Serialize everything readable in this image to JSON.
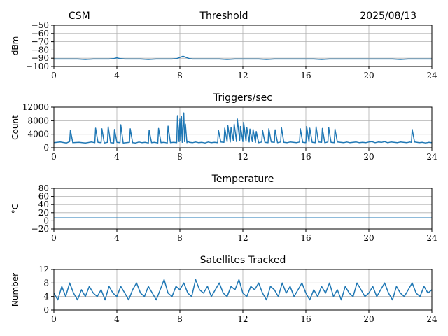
{
  "header": {
    "station": "CSM",
    "title": "Threshold",
    "date": "2025/08/13"
  },
  "chart_data": [
    {
      "type": "line",
      "title": "Threshold",
      "xlabel": "",
      "ylabel": "dBm",
      "xlim": [
        0,
        24
      ],
      "ylim": [
        -100,
        -50
      ],
      "xticks": [
        0,
        4,
        8,
        12,
        16,
        20,
        24
      ],
      "yticks": [
        -100,
        -90,
        -80,
        -70,
        -60,
        -50
      ],
      "ytick_labels": [
        "−100",
        "−90",
        "−80",
        "−70",
        "−60",
        "−50"
      ],
      "grid": true,
      "series": [
        {
          "color": "#1f77b4",
          "x": [
            0,
            0.5,
            1,
            1.5,
            2,
            2.5,
            3,
            3.5,
            3.8,
            4.0,
            4.2,
            4.5,
            5,
            5.5,
            6,
            6.5,
            7,
            7.5,
            7.8,
            8.0,
            8.2,
            8.4,
            8.6,
            8.8,
            9,
            9.5,
            10,
            10.5,
            11,
            11.5,
            12,
            12.5,
            13,
            13.5,
            14,
            14.5,
            15,
            15.5,
            16,
            16.5,
            17,
            17.5,
            18,
            18.5,
            19,
            19.5,
            20,
            20.5,
            21,
            21.5,
            22,
            22.5,
            23,
            23.5,
            24
          ],
          "y": [
            -91,
            -91,
            -91,
            -91,
            -91.5,
            -91,
            -91,
            -91,
            -90.5,
            -89.5,
            -90.5,
            -91,
            -91,
            -91,
            -91.5,
            -91,
            -91,
            -91,
            -90.5,
            -89,
            -87.5,
            -89,
            -90.5,
            -91,
            -91,
            -91,
            -91,
            -91,
            -91.5,
            -91,
            -91,
            -91,
            -91,
            -91.5,
            -91,
            -91,
            -91,
            -91,
            -91,
            -91,
            -91.5,
            -91,
            -91,
            -91,
            -91,
            -91,
            -91,
            -91,
            -91,
            -91,
            -91.5,
            -91,
            -91,
            -91,
            -91
          ]
        }
      ]
    },
    {
      "type": "line",
      "title": "Triggers/sec",
      "xlabel": "",
      "ylabel": "Count",
      "xlim": [
        0,
        24
      ],
      "ylim": [
        0,
        12000
      ],
      "xticks": [
        0,
        4,
        8,
        12,
        16,
        20,
        24
      ],
      "yticks": [
        0,
        4000,
        8000,
        12000
      ],
      "grid": true,
      "series": [
        {
          "color": "#1f77b4",
          "x": [
            0,
            0.4,
            0.8,
            1.0,
            1.05,
            1.2,
            1.6,
            2.0,
            2.4,
            2.6,
            2.65,
            2.8,
            3.0,
            3.05,
            3.2,
            3.4,
            3.45,
            3.6,
            3.8,
            3.85,
            4.0,
            4.2,
            4.25,
            4.4,
            4.6,
            4.8,
            4.85,
            5.0,
            5.2,
            5.4,
            5.6,
            5.8,
            6.0,
            6.05,
            6.2,
            6.4,
            6.6,
            6.65,
            6.8,
            7.0,
            7.2,
            7.25,
            7.4,
            7.6,
            7.8,
            7.85,
            7.95,
            8.0,
            8.05,
            8.1,
            8.15,
            8.25,
            8.3,
            8.35,
            8.45,
            8.5,
            8.6,
            8.8,
            9.0,
            9.2,
            9.4,
            9.6,
            9.8,
            10.0,
            10.2,
            10.4,
            10.45,
            10.6,
            10.8,
            10.85,
            11.0,
            11.05,
            11.2,
            11.25,
            11.4,
            11.45,
            11.6,
            11.65,
            11.8,
            11.85,
            12.0,
            12.05,
            12.2,
            12.25,
            12.4,
            12.45,
            12.6,
            12.65,
            12.8,
            12.85,
            13.0,
            13.2,
            13.25,
            13.4,
            13.6,
            13.65,
            13.8,
            14.0,
            14.05,
            14.2,
            14.4,
            14.45,
            14.6,
            14.8,
            15.0,
            15.2,
            15.4,
            15.6,
            15.65,
            15.8,
            16.0,
            16.05,
            16.2,
            16.25,
            16.4,
            16.6,
            16.65,
            16.8,
            17.0,
            17.05,
            17.2,
            17.4,
            17.45,
            17.6,
            17.8,
            17.85,
            18.0,
            18.2,
            18.4,
            18.6,
            18.8,
            19.0,
            19.2,
            19.4,
            19.6,
            19.8,
            20.0,
            20.2,
            20.4,
            20.6,
            20.8,
            21.0,
            21.2,
            21.4,
            21.6,
            21.8,
            22.0,
            22.2,
            22.4,
            22.6,
            22.7,
            22.75,
            22.9,
            23.2,
            23.4,
            23.6,
            23.8,
            24.0
          ],
          "y": [
            1500,
            1700,
            1400,
            1800,
            5200,
            1500,
            1600,
            1400,
            1700,
            1500,
            5800,
            1600,
            1500,
            5600,
            1400,
            1600,
            6200,
            1500,
            1400,
            5400,
            1600,
            1500,
            6800,
            1400,
            1500,
            1600,
            5600,
            1500,
            1400,
            1700,
            1500,
            1600,
            1400,
            5200,
            1500,
            1600,
            1400,
            5700,
            1500,
            1600,
            1400,
            6400,
            1500,
            1600,
            1500,
            9500,
            1800,
            8500,
            2000,
            9200,
            1600,
            10300,
            1800,
            7000,
            1500,
            2000,
            1600,
            1500,
            1700,
            1500,
            1600,
            1400,
            1700,
            1500,
            1600,
            1500,
            5200,
            1700,
            1600,
            5800,
            1800,
            6500,
            1700,
            6000,
            2000,
            7000,
            1800,
            8500,
            2200,
            6300,
            1800,
            7500,
            1900,
            6000,
            1700,
            5500,
            1800,
            5400,
            1600,
            4800,
            1500,
            1700,
            5200,
            1600,
            1500,
            5600,
            1700,
            1600,
            5300,
            1500,
            1700,
            6000,
            1600,
            1500,
            1700,
            1600,
            1500,
            1700,
            5600,
            1600,
            1500,
            6300,
            1700,
            5800,
            1600,
            1500,
            6200,
            1700,
            1600,
            5700,
            1500,
            1700,
            6000,
            1600,
            1500,
            5500,
            1700,
            1600,
            1500,
            1700,
            1500,
            1600,
            1700,
            1500,
            1600,
            1500,
            1700,
            1800,
            1500,
            1700,
            1600,
            1800,
            1500,
            1700,
            1600,
            1500,
            1700,
            1600,
            1500,
            1700,
            1600,
            5400,
            1700,
            1500,
            1600,
            1400,
            1600,
            1500
          ]
        }
      ]
    },
    {
      "type": "line",
      "title": "Temperature",
      "xlabel": "",
      "ylabel": "°C",
      "xlim": [
        0,
        24
      ],
      "ylim": [
        -20,
        80
      ],
      "xticks": [
        0,
        4,
        8,
        12,
        16,
        20,
        24
      ],
      "yticks": [
        -20,
        0,
        20,
        40,
        60,
        80
      ],
      "ytick_labels": [
        "−20",
        "0",
        "20",
        "40",
        "60",
        "80"
      ],
      "grid": true,
      "series": [
        {
          "color": "#1f77b4",
          "x": [
            0,
            24
          ],
          "y": [
            7,
            7
          ]
        }
      ]
    },
    {
      "type": "line",
      "title": "Satellites Tracked",
      "xlabel": "",
      "ylabel": "Number",
      "xlim": [
        0,
        24
      ],
      "ylim": [
        0,
        12
      ],
      "xticks": [
        0,
        4,
        8,
        12,
        16,
        20,
        24
      ],
      "yticks": [
        0,
        4,
        8,
        12
      ],
      "grid": true,
      "series": [
        {
          "color": "#1f77b4",
          "x": [
            0,
            0.25,
            0.5,
            0.75,
            1,
            1.25,
            1.5,
            1.75,
            2,
            2.25,
            2.5,
            2.75,
            3,
            3.25,
            3.5,
            3.75,
            4,
            4.25,
            4.5,
            4.75,
            5,
            5.25,
            5.5,
            5.75,
            6,
            6.25,
            6.5,
            6.75,
            7,
            7.25,
            7.5,
            7.75,
            8,
            8.25,
            8.5,
            8.75,
            9,
            9.25,
            9.5,
            9.75,
            10,
            10.25,
            10.5,
            10.75,
            11,
            11.25,
            11.5,
            11.75,
            12,
            12.25,
            12.5,
            12.75,
            13,
            13.25,
            13.5,
            13.75,
            14,
            14.25,
            14.5,
            14.75,
            15,
            15.25,
            15.5,
            15.75,
            16,
            16.25,
            16.5,
            16.75,
            17,
            17.25,
            17.5,
            17.75,
            18,
            18.25,
            18.5,
            18.75,
            19,
            19.25,
            19.5,
            19.75,
            20,
            20.25,
            20.5,
            20.75,
            21,
            21.25,
            21.5,
            21.75,
            22,
            22.25,
            22.5,
            22.75,
            23,
            23.25,
            23.5,
            23.75,
            24
          ],
          "y": [
            5,
            3,
            7,
            4,
            8,
            5,
            3,
            6,
            4,
            7,
            5,
            4,
            6,
            3,
            7,
            5,
            4,
            7,
            5,
            3,
            6,
            8,
            5,
            4,
            7,
            5,
            3,
            6,
            9,
            5,
            4,
            7,
            6,
            8,
            5,
            4,
            9,
            6,
            5,
            7,
            4,
            6,
            8,
            5,
            4,
            7,
            6,
            9,
            5,
            4,
            7,
            6,
            8,
            5,
            3,
            7,
            6,
            4,
            8,
            5,
            7,
            4,
            6,
            8,
            5,
            3,
            6,
            4,
            7,
            5,
            8,
            4,
            6,
            3,
            7,
            5,
            4,
            8,
            6,
            4,
            5,
            7,
            4,
            6,
            8,
            5,
            3,
            7,
            5,
            4,
            6,
            8,
            5,
            4,
            7,
            5,
            6
          ]
        }
      ]
    }
  ]
}
